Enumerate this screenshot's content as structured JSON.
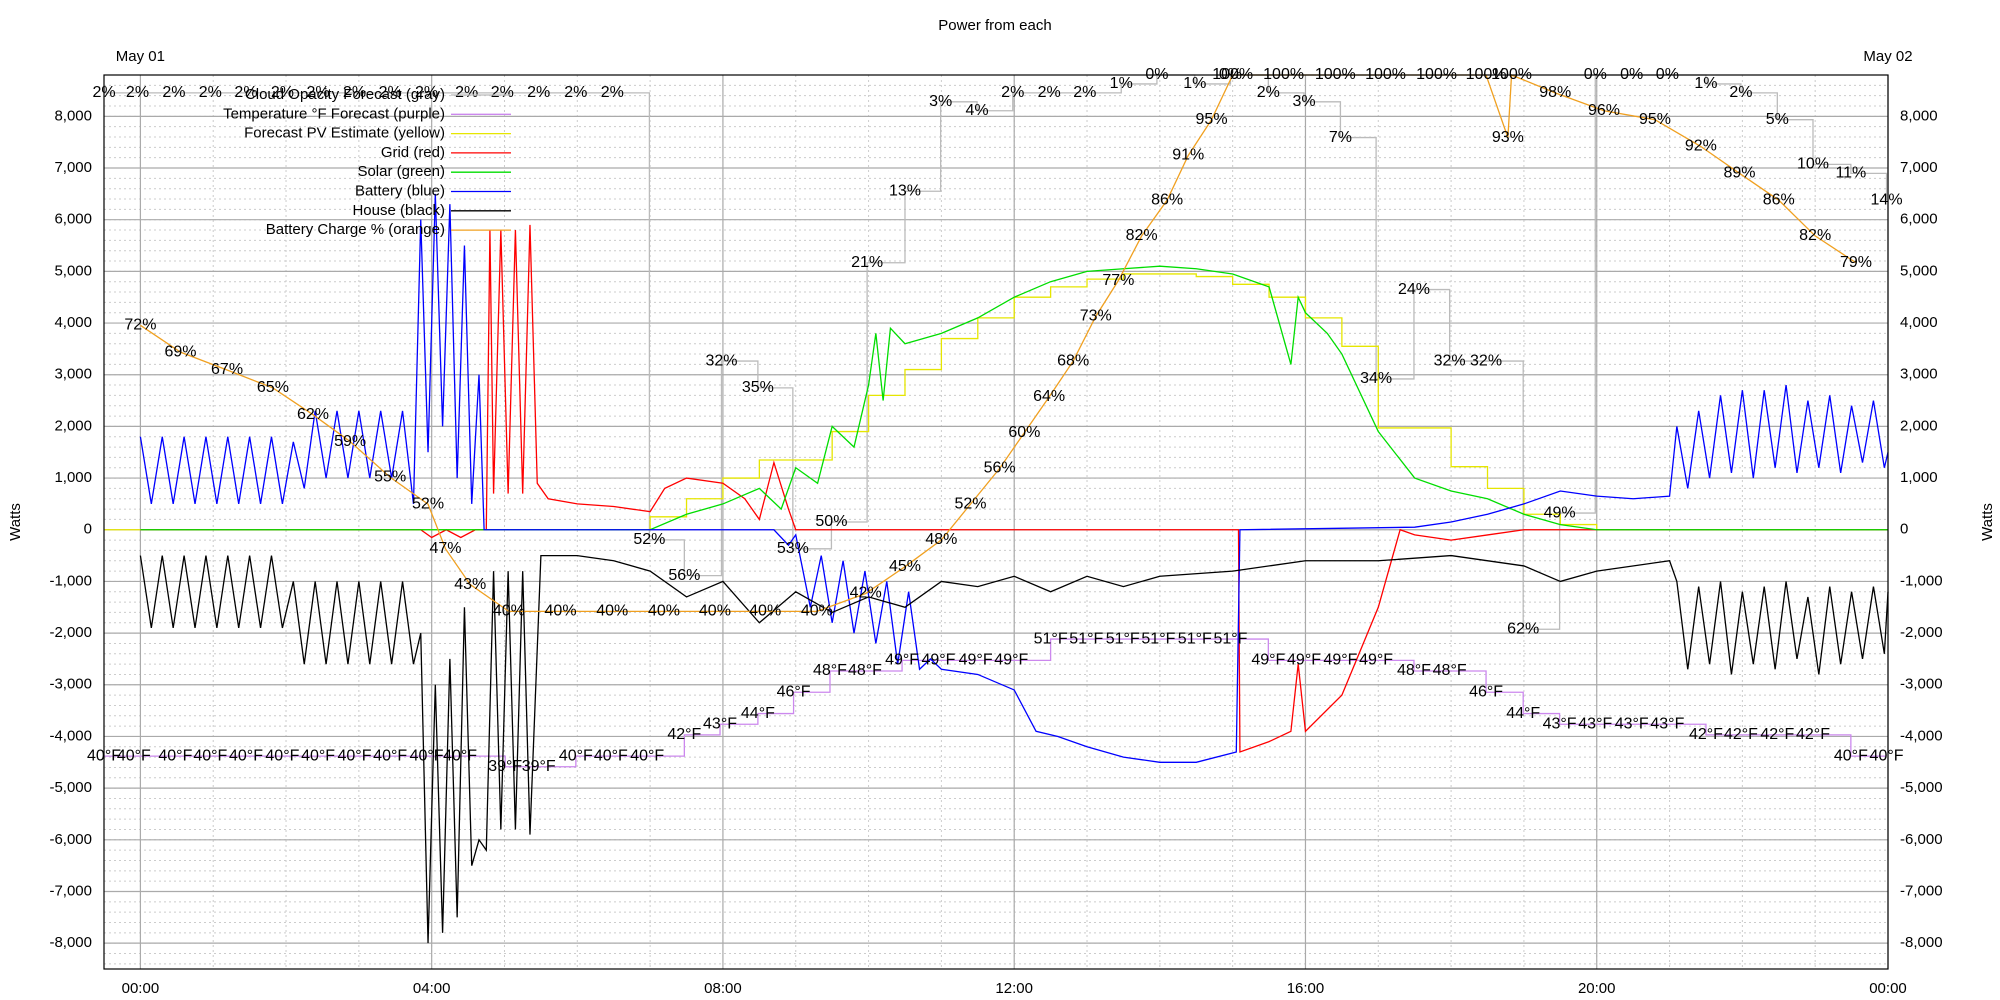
{
  "chart_data": {
    "type": "line",
    "title": "Power from each",
    "ylabel": "Watts",
    "date_labels": [
      "May 01",
      "May 02"
    ],
    "xlim": [
      -0.5,
      24
    ],
    "ylim": [
      -8500,
      8800
    ],
    "xticks": [
      {
        "value": 0,
        "label": "00:00"
      },
      {
        "value": 4,
        "label": "04:00"
      },
      {
        "value": 8,
        "label": "08:00"
      },
      {
        "value": 12,
        "label": "12:00"
      },
      {
        "value": 16,
        "label": "16:00"
      },
      {
        "value": 20,
        "label": "20:00"
      },
      {
        "value": 24,
        "label": "00:00"
      }
    ],
    "yticks": [
      {
        "value": -8000,
        "label": "-8,000"
      },
      {
        "value": -7000,
        "label": "-7,000"
      },
      {
        "value": -6000,
        "label": "-6,000"
      },
      {
        "value": -5000,
        "label": "-5,000"
      },
      {
        "value": -4000,
        "label": "-4,000"
      },
      {
        "value": -3000,
        "label": "-3,000"
      },
      {
        "value": -2000,
        "label": "-2,000"
      },
      {
        "value": -1000,
        "label": "-1,000"
      },
      0,
      {
        "value": 1000,
        "label": "1,000"
      },
      {
        "value": 2000,
        "label": "2,000"
      },
      {
        "value": 3000,
        "label": "3,000"
      },
      {
        "value": 4000,
        "label": "4,000"
      },
      {
        "value": 5000,
        "label": "5,000"
      },
      {
        "value": 6000,
        "label": "6,000"
      },
      {
        "value": 7000,
        "label": "7,000"
      },
      {
        "value": 8000,
        "label": "8,000"
      }
    ],
    "grid": true,
    "xminor": 1,
    "yminor": 200,
    "legend": "top-left",
    "series": [
      {
        "name": "Cloud Opacity Forecast (gray)",
        "color": "#bbbbbb",
        "label_color": "#bbbbbb",
        "step": true,
        "range": [
          100,
          0
        ],
        "x": [
          -0.5,
          -0.04,
          0.46,
          0.96,
          1.45,
          1.95,
          2.44,
          2.94,
          3.43,
          3.93,
          4.48,
          4.97,
          5.47,
          5.98,
          6.48,
          6.99,
          7.47,
          7.98,
          8.48,
          8.96,
          9.49,
          9.98,
          10.5,
          10.99,
          11.49,
          11.98,
          12.48,
          12.97,
          13.47,
          13.96,
          14.48,
          14.97,
          15.49,
          15.98,
          16.48,
          16.97,
          17.49,
          17.98,
          18.48,
          18.99,
          19.49,
          19.98,
          20.48,
          20.97,
          21.5,
          21.98,
          22.48,
          22.97,
          23.49,
          23.98
        ],
        "values": [
          2,
          2,
          2,
          2,
          2,
          2,
          2,
          2,
          2,
          2,
          2,
          2,
          2,
          2,
          2,
          52,
          56,
          32,
          35,
          53,
          50,
          21,
          13,
          3,
          4,
          2,
          2,
          2,
          1,
          0,
          1,
          0,
          2,
          3,
          7,
          34,
          24,
          32,
          32,
          62,
          49,
          0,
          0,
          0,
          1,
          2,
          5,
          10,
          11,
          14
        ],
        "value_labels": [
          "2%",
          "2%",
          "2%",
          "2%",
          "2%",
          "2%",
          "2%",
          "2%",
          "2%",
          "2%",
          "2%",
          "2%",
          "2%",
          "2%",
          "2%",
          "52%",
          "56%",
          "32%",
          "35%",
          "53%",
          "50%",
          "21%",
          "13%",
          "3%",
          "4%",
          "2%",
          "2%",
          "2%",
          "1%",
          "0%",
          "1%",
          "0%",
          "2%",
          "3%",
          "7%",
          "34%",
          "24%",
          "32%",
          "32%",
          "62%",
          "49%",
          "0%",
          "0%",
          "0%",
          "1%",
          "2%",
          "5%",
          "10%",
          "11%",
          "14%"
        ]
      },
      {
        "name": "Temperature °F Forecast (purple)",
        "color": "#cc88ee",
        "label_color": "#c080ee",
        "step": true,
        "range": [
          20,
          104
        ],
        "x": [
          -0.5,
          -0.09,
          0.48,
          0.96,
          1.45,
          1.95,
          2.44,
          2.94,
          3.43,
          3.93,
          4.39,
          5.01,
          5.47,
          5.98,
          6.46,
          6.96,
          7.47,
          7.96,
          8.48,
          8.97,
          9.47,
          9.95,
          10.46,
          10.96,
          11.47,
          11.96,
          12.5,
          12.99,
          13.49,
          13.98,
          14.48,
          14.97,
          15.49,
          15.98,
          16.48,
          16.97,
          17.49,
          17.98,
          18.48,
          18.99,
          19.49,
          19.98,
          20.48,
          20.97,
          21.5,
          21.98,
          22.48,
          22.97,
          23.49,
          23.98
        ],
        "values": [
          40,
          40,
          40,
          40,
          40,
          40,
          40,
          40,
          40,
          40,
          40,
          39,
          39,
          40,
          40,
          40,
          42,
          43,
          44,
          46,
          48,
          48,
          49,
          49,
          49,
          49,
          51,
          51,
          51,
          51,
          51,
          51,
          49,
          49,
          49,
          49,
          48,
          48,
          46,
          44,
          43,
          43,
          43,
          43,
          42,
          42,
          42,
          42,
          40,
          40
        ],
        "value_labels": [
          "40°F",
          "40°F",
          "40°F",
          "40°F",
          "40°F",
          "40°F",
          "40°F",
          "40°F",
          "40°F",
          "40°F",
          "40°F",
          "39°F",
          "39°F",
          "40°F",
          "40°F",
          "40°F",
          "42°F",
          "43°F",
          "44°F",
          "46°F",
          "48°F",
          "48°F",
          "49°F",
          "49°F",
          "49°F",
          "49°F",
          "51°F",
          "51°F",
          "51°F",
          "51°F",
          "51°F",
          "51°F",
          "49°F",
          "49°F",
          "49°F",
          "49°F",
          "48°F",
          "48°F",
          "46°F",
          "44°F",
          "43°F",
          "43°F",
          "43°F",
          "43°F",
          "42°F",
          "42°F",
          "42°F",
          "42°F",
          "40°F",
          "40°F"
        ]
      },
      {
        "name": "Forecast PV Estimate (yellow)",
        "color": "#e6e600",
        "step": true,
        "x": [
          -0.5,
          6.5,
          7,
          7.5,
          8,
          8.5,
          9.5,
          10,
          10.5,
          11,
          11.5,
          12,
          12.5,
          13,
          13.5,
          14.5,
          15,
          15.5,
          16,
          16.5,
          17,
          18,
          18.5,
          19,
          19.5,
          20,
          24
        ],
        "values": [
          0,
          0,
          250,
          600,
          1000,
          1350,
          1900,
          2600,
          3100,
          3700,
          4100,
          4500,
          4700,
          4850,
          4950,
          4900,
          4750,
          4500,
          4100,
          3550,
          1970,
          1220,
          800,
          300,
          100,
          0,
          0
        ]
      },
      {
        "name": "Grid (red)",
        "color": "#ff0000",
        "x": [
          0,
          3.85,
          4.0,
          4.2,
          4.4,
          4.6,
          4.75,
          4.8,
          4.85,
          4.95,
          5.05,
          5.15,
          5.25,
          5.35,
          5.45,
          5.6,
          6,
          6.5,
          7,
          7.2,
          7.5,
          8,
          8.3,
          8.5,
          8.7,
          8.9,
          9,
          15.08,
          15.1,
          15.5,
          15.8,
          15.9,
          16,
          16.5,
          17,
          17.3,
          17.5,
          18,
          18.5,
          19,
          24
        ],
        "values": [
          0,
          0,
          -150,
          0,
          -150,
          0,
          0,
          5800,
          700,
          5800,
          700,
          5800,
          700,
          5900,
          900,
          600,
          500,
          450,
          350,
          800,
          1000,
          900,
          600,
          200,
          1300,
          400,
          0,
          0,
          -4300,
          -4100,
          -3900,
          -2600,
          -3900,
          -3200,
          -1500,
          0,
          -100,
          -200,
          -100,
          0,
          0
        ]
      },
      {
        "name": "Solar (green)",
        "color": "#00dd00",
        "x": [
          0,
          7,
          7.5,
          8,
          8.5,
          8.8,
          9,
          9.3,
          9.5,
          9.8,
          10,
          10.1,
          10.2,
          10.3,
          10.5,
          11,
          11.5,
          12,
          12.5,
          13,
          13.5,
          14,
          14.5,
          15,
          15.5,
          15.8,
          15.9,
          16,
          16.3,
          16.5,
          17,
          17.5,
          18,
          18.5,
          19,
          19.5,
          20,
          24
        ],
        "values": [
          0,
          0,
          300,
          500,
          800,
          400,
          1200,
          900,
          2000,
          1600,
          2800,
          3800,
          2500,
          3900,
          3600,
          3800,
          4100,
          4500,
          4800,
          5000,
          5050,
          5100,
          5050,
          4950,
          4700,
          3200,
          4500,
          4200,
          3800,
          3400,
          1900,
          1000,
          750,
          600,
          300,
          100,
          0,
          0
        ]
      },
      {
        "name": "Battery (blue)",
        "color": "#0000ff",
        "x": [
          0,
          0.15,
          0.3,
          0.45,
          0.6,
          0.75,
          0.9,
          1.05,
          1.2,
          1.35,
          1.5,
          1.65,
          1.8,
          1.95,
          2.1,
          2.25,
          2.4,
          2.55,
          2.7,
          2.85,
          3.0,
          3.15,
          3.3,
          3.45,
          3.6,
          3.75,
          3.85,
          3.95,
          4.05,
          4.15,
          4.25,
          4.35,
          4.45,
          4.55,
          4.65,
          4.72,
          8.7,
          8.9,
          9.0,
          9.2,
          9.35,
          9.5,
          9.65,
          9.8,
          9.95,
          10.1,
          10.25,
          10.4,
          10.55,
          10.7,
          10.85,
          11,
          11.5,
          12,
          12.3,
          12.6,
          13,
          13.5,
          14,
          14.5,
          15.05,
          15.1,
          17.5,
          18,
          18.5,
          19,
          19.5,
          20,
          20.5,
          21,
          21.1,
          21.25,
          21.4,
          21.55,
          21.7,
          21.85,
          22,
          22.15,
          22.3,
          22.45,
          22.6,
          22.75,
          22.9,
          23.05,
          23.2,
          23.35,
          23.5,
          23.65,
          23.8,
          23.95,
          24
        ],
        "values": [
          1800,
          500,
          1800,
          500,
          1800,
          500,
          1800,
          500,
          1800,
          500,
          1800,
          500,
          1800,
          500,
          1700,
          800,
          2300,
          1000,
          2300,
          1000,
          2300,
          1000,
          2300,
          1000,
          2300,
          500,
          6000,
          1500,
          6500,
          2000,
          6300,
          1000,
          5500,
          500,
          3000,
          0,
          0,
          -300,
          -100,
          -1500,
          -500,
          -1800,
          -600,
          -2000,
          -800,
          -2200,
          -1000,
          -2600,
          -1200,
          -2700,
          -2500,
          -2700,
          -2800,
          -3100,
          -3900,
          -4000,
          -4200,
          -4400,
          -4500,
          -4500,
          -4300,
          0,
          50,
          150,
          300,
          500,
          750,
          650,
          600,
          650,
          2000,
          800,
          2300,
          1000,
          2600,
          1100,
          2700,
          1000,
          2700,
          1200,
          2800,
          1100,
          2500,
          1200,
          2600,
          1100,
          2400,
          1300,
          2500,
          1200,
          1500
        ]
      },
      {
        "name": "House (black)",
        "color": "#000000",
        "x": [
          0,
          0.15,
          0.3,
          0.45,
          0.6,
          0.75,
          0.9,
          1.05,
          1.2,
          1.35,
          1.5,
          1.65,
          1.8,
          1.95,
          2.1,
          2.25,
          2.4,
          2.55,
          2.7,
          2.85,
          3.0,
          3.15,
          3.3,
          3.45,
          3.6,
          3.75,
          3.85,
          3.95,
          4.05,
          4.15,
          4.25,
          4.35,
          4.45,
          4.55,
          4.65,
          4.75,
          4.85,
          4.95,
          5.05,
          5.15,
          5.25,
          5.35,
          5.5,
          6,
          6.5,
          7,
          7.5,
          8,
          8.5,
          9,
          9.5,
          10,
          10.5,
          11,
          11.5,
          12,
          12.5,
          13,
          13.5,
          14,
          15,
          16,
          17,
          18,
          19,
          19.5,
          20,
          21,
          21.1,
          21.25,
          21.4,
          21.55,
          21.7,
          21.85,
          22,
          22.15,
          22.3,
          22.45,
          22.6,
          22.75,
          22.9,
          23.05,
          23.2,
          23.35,
          23.5,
          23.65,
          23.8,
          23.95,
          24
        ],
        "values": [
          -500,
          -1900,
          -500,
          -1900,
          -500,
          -1900,
          -500,
          -1900,
          -500,
          -1900,
          -500,
          -1900,
          -500,
          -1900,
          -1000,
          -2600,
          -1000,
          -2600,
          -1000,
          -2600,
          -1000,
          -2600,
          -1000,
          -2600,
          -1000,
          -2600,
          -2000,
          -8000,
          -3000,
          -7800,
          -2500,
          -7500,
          -1500,
          -6500,
          -6000,
          -6200,
          -800,
          -5800,
          -800,
          -5800,
          -800,
          -5900,
          -500,
          -500,
          -600,
          -800,
          -1300,
          -1000,
          -1800,
          -1200,
          -1600,
          -1300,
          -1500,
          -1000,
          -1100,
          -900,
          -1200,
          -900,
          -1100,
          -900,
          -800,
          -600,
          -600,
          -500,
          -700,
          -1000,
          -800,
          -600,
          -1000,
          -2700,
          -1100,
          -2600,
          -1000,
          -2800,
          -1200,
          -2600,
          -1100,
          -2700,
          -1000,
          -2500,
          -1300,
          -2800,
          -1100,
          -2600,
          -1200,
          -2500,
          -1100,
          -2400,
          -1200
        ]
      },
      {
        "name": "Battery Charge % (orange)",
        "color": "#f0a020",
        "label_color": "#884411",
        "range": [
          0,
          100
        ],
        "x": [
          0,
          0.55,
          1.19,
          1.82,
          2.37,
          2.88,
          3.43,
          3.95,
          4.19,
          4.53,
          5.06,
          5.77,
          6.48,
          7.19,
          7.89,
          8.58,
          9.29,
          9.96,
          10.5,
          11.0,
          11.4,
          11.8,
          12.14,
          12.48,
          12.81,
          13.12,
          13.43,
          13.75,
          14.1,
          14.39,
          14.71,
          15.0,
          15.7,
          16.41,
          17.1,
          17.8,
          18.48,
          18.78,
          18.83,
          19.43,
          20.1,
          20.8,
          21.43,
          21.96,
          22.5,
          23.0,
          23.56
        ],
        "values": [
          72,
          69,
          67,
          65,
          62,
          59,
          55,
          52,
          47,
          43,
          40,
          40,
          40,
          40,
          40,
          40,
          40,
          42,
          45,
          48,
          52,
          56,
          60,
          64,
          68,
          73,
          77,
          82,
          86,
          91,
          95,
          100,
          100,
          100,
          100,
          100,
          100,
          93,
          100,
          98,
          96,
          95,
          92,
          89,
          86,
          82,
          79
        ],
        "value_labels": [
          "72%",
          "69%",
          "67%",
          "65%",
          "62%",
          "59%",
          "55%",
          "52%",
          "47%",
          "43%",
          "40%",
          "40%",
          "40%",
          "40%",
          "40%",
          "40%",
          "40%",
          "42%",
          "45%",
          "48%",
          "52%",
          "56%",
          "60%",
          "64%",
          "68%",
          "73%",
          "77%",
          "82%",
          "86%",
          "91%",
          "95%",
          "100%",
          "100%",
          "100%",
          "100%",
          "100%",
          "100%",
          "93%",
          "100%",
          "98%",
          "96%",
          "95%",
          "92%",
          "89%",
          "86%",
          "82%",
          "79%"
        ]
      }
    ]
  }
}
